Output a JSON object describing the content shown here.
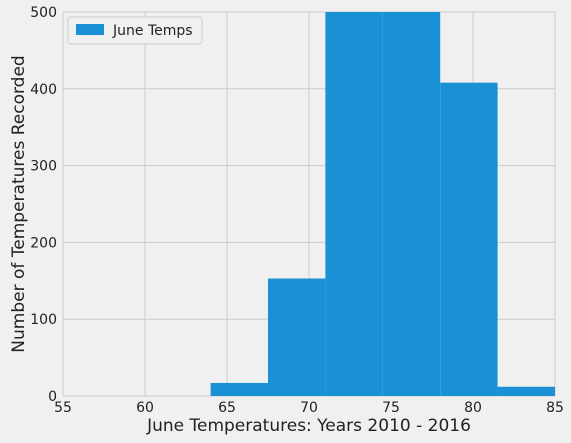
{
  "chart_data": {
    "type": "bar",
    "subtype": "histogram",
    "title": "",
    "xlabel": "June Temperatures: Years 2010 - 2016",
    "ylabel": "Number of Temperatures Recorded",
    "xlim": [
      55,
      85
    ],
    "ylim": [
      0,
      500
    ],
    "xticks": [
      55,
      60,
      65,
      70,
      75,
      80,
      85
    ],
    "yticks": [
      0,
      100,
      200,
      300,
      400,
      500
    ],
    "grid": true,
    "legend": {
      "position": "top-left",
      "entries": [
        "June Temps"
      ]
    },
    "series": [
      {
        "name": "June Temps",
        "color": "#1a91d4",
        "bins": [
          {
            "x0": 64.0,
            "x1": 67.5,
            "value": 17
          },
          {
            "x0": 67.5,
            "x1": 71.0,
            "value": 153
          },
          {
            "x0": 71.0,
            "x1": 74.5,
            "value": 505
          },
          {
            "x0": 74.5,
            "x1": 78.0,
            "value": 515
          },
          {
            "x0": 78.0,
            "x1": 81.5,
            "value": 408
          },
          {
            "x0": 81.5,
            "x1": 85.0,
            "value": 12
          }
        ]
      }
    ]
  },
  "colors": {
    "background": "#f0f0f0",
    "grid": "#cbcbcb",
    "bar": "#1a91d4",
    "text": "#222222"
  }
}
